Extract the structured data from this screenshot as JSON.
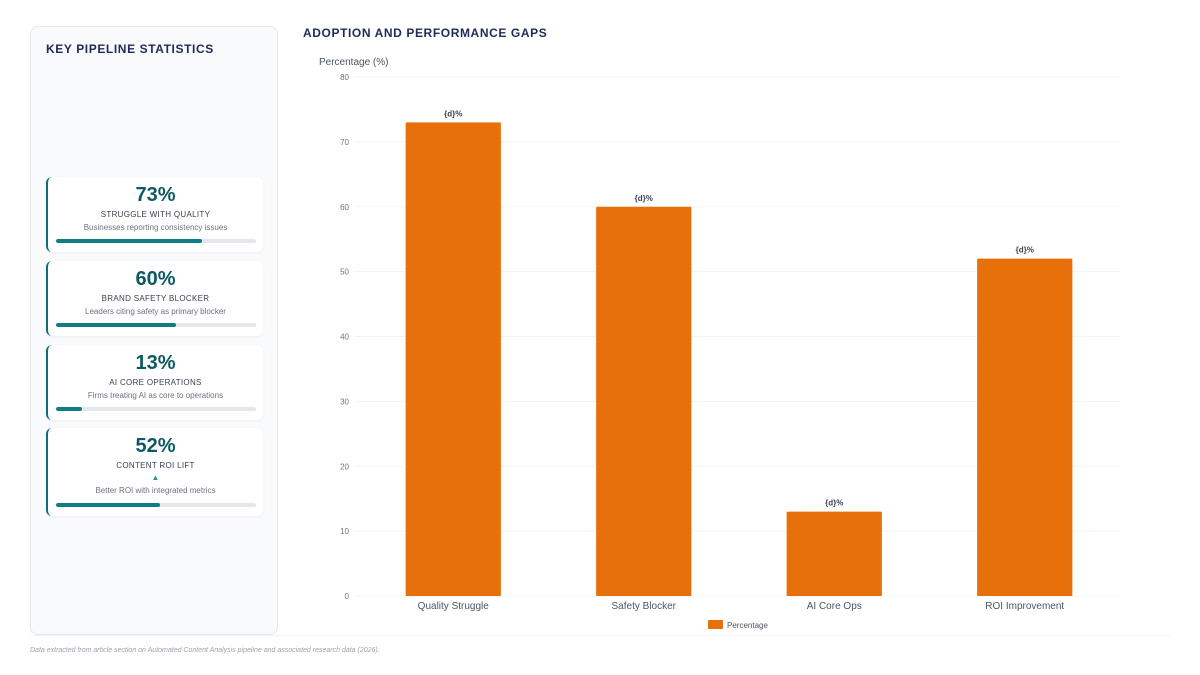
{
  "left_panel": {
    "title": "KEY PIPELINE STATISTICS",
    "stats": [
      {
        "value": "73%",
        "label": "STRUGGLE WITH QUALITY",
        "description": "Businesses reporting consistency issues",
        "progress": 0.73
      },
      {
        "value": "60%",
        "label": "BRAND SAFETY BLOCKER",
        "description": "Leaders citing safety as primary blocker",
        "progress": 0.6
      },
      {
        "value": "13%",
        "label": "AI CORE OPERATIONS",
        "description": "Firms treating AI as core to operations",
        "progress": 0.13
      },
      {
        "value": "52%",
        "label": "CONTENT ROI LIFT",
        "trend_icon": "up-triangle-icon",
        "trend_symbol": "▲",
        "description": "Better ROI with integrated metrics",
        "progress": 0.52
      }
    ]
  },
  "chart_title": "ADOPTION AND PERFORMANCE GAPS",
  "chart_data": {
    "type": "bar",
    "categories": [
      "Quality Struggle",
      "Safety Blocker",
      "AI Core Ops",
      "ROI Improvement"
    ],
    "series": [
      {
        "name": "Percentage",
        "values": [
          73,
          60,
          13,
          52
        ]
      }
    ],
    "data_label": "{d}%",
    "ylabel": "Percentage (%)",
    "xlabel": "",
    "ylim": [
      0,
      80
    ],
    "yticks": [
      0,
      10,
      20,
      30,
      40,
      50,
      60,
      70,
      80
    ],
    "grid": true,
    "legend_position": "bottom-center",
    "bar_color": "#e8700a"
  },
  "footnote": "Data extracted from article section on Automated Content Analysis pipeline and associated research data (2026)."
}
